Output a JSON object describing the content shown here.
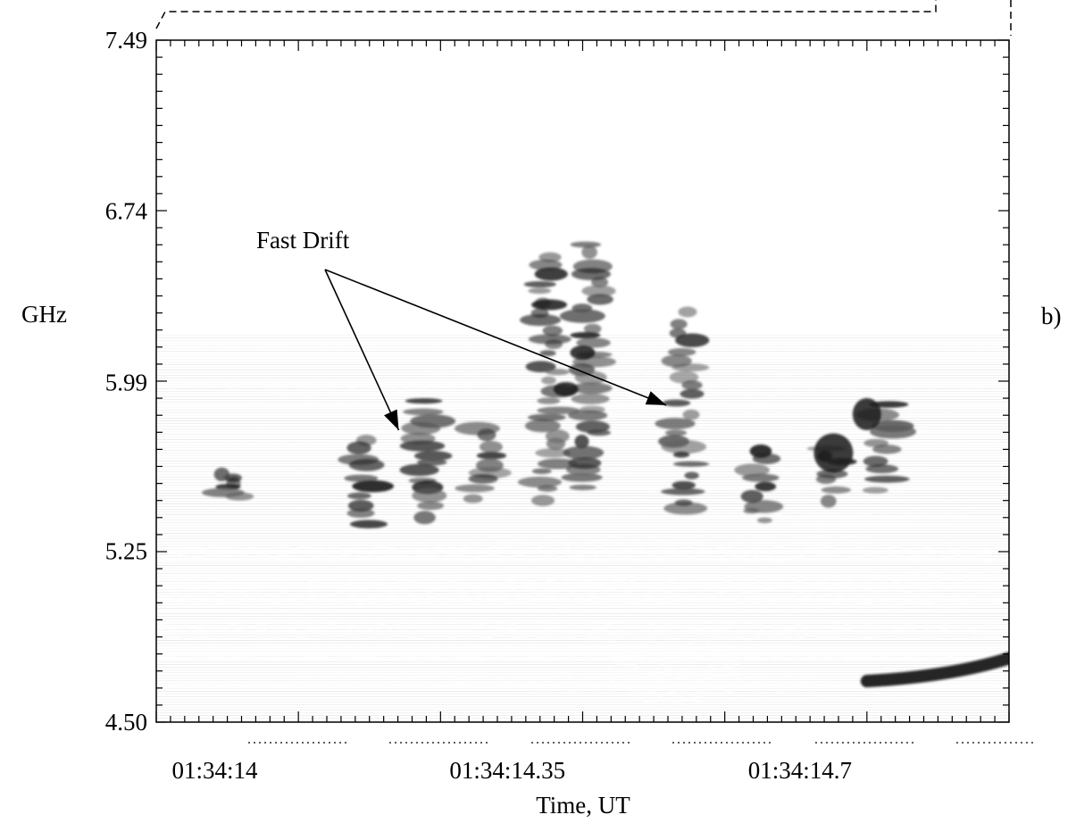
{
  "chart_data": {
    "type": "heatmap",
    "title": "",
    "xlabel": "Time, UT",
    "ylabel": "GHz",
    "panel_label": "b)",
    "ylim": [
      4.5,
      7.49
    ],
    "y_ticks": [
      "7.49",
      "6.74",
      "5.99",
      "5.25",
      "4.50"
    ],
    "y_tick_values": [
      7.49,
      6.74,
      5.99,
      5.25,
      4.5
    ],
    "x_ticks": [
      "01:34:14",
      "01:34:14.35",
      "01:34:14.7"
    ],
    "xlim_seconds": [
      13.93,
      14.95
    ],
    "x_tick_seconds": [
      14.0,
      14.35,
      14.7
    ],
    "colormap": "inverted grayscale (darker = stronger emission)",
    "annotations": [
      {
        "text": "Fast Drift",
        "arrow_targets": [
          [
            14.22,
            5.78
          ],
          [
            14.54,
            5.89
          ]
        ]
      }
    ],
    "features": {
      "horizontal_bands_ghz": [
        5.26,
        5.22,
        5.12,
        5.07,
        5.03,
        4.92,
        4.87,
        4.78,
        4.66,
        5.43,
        5.6,
        5.73,
        5.8,
        5.96,
        6.12,
        6.33
      ],
      "drifting_bursts": [
        {
          "t": 14.02,
          "f_top": 5.6,
          "f_bottom": 5.48
        },
        {
          "t": 14.18,
          "f_top": 5.75,
          "f_bottom": 5.35
        },
        {
          "t": 14.25,
          "f_top": 5.92,
          "f_bottom": 5.38
        },
        {
          "t": 14.32,
          "f_top": 5.8,
          "f_bottom": 5.45
        },
        {
          "t": 14.4,
          "f_top": 6.55,
          "f_bottom": 5.45
        },
        {
          "t": 14.45,
          "f_top": 6.6,
          "f_bottom": 5.5
        },
        {
          "t": 14.56,
          "f_top": 6.3,
          "f_bottom": 5.4
        },
        {
          "t": 14.65,
          "f_top": 5.7,
          "f_bottom": 5.35
        },
        {
          "t": 14.74,
          "f_top": 5.72,
          "f_bottom": 5.45
        },
        {
          "t": 14.8,
          "f_top": 5.9,
          "f_bottom": 5.5
        }
      ],
      "slow_drift_segment": {
        "t_start": 14.78,
        "f_start": 4.68,
        "t_end": 14.95,
        "f_end": 4.78
      }
    }
  }
}
